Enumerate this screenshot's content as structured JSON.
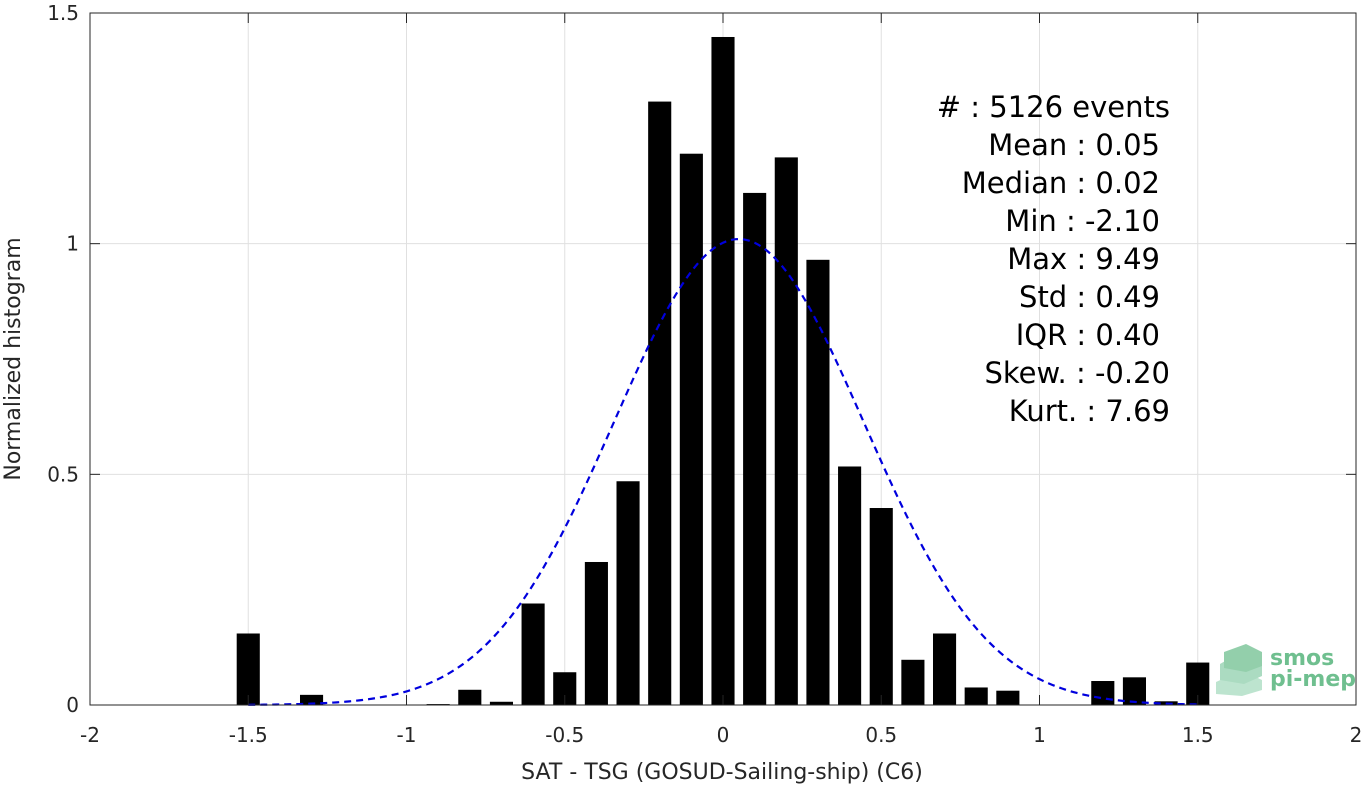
{
  "chart_data": {
    "type": "bar",
    "xlabel": "SAT - TSG (GOSUD-Sailing-ship) (C6)",
    "ylabel": "Normalized histogram",
    "xlim": [
      -2,
      2
    ],
    "ylim": [
      0,
      1.5
    ],
    "xticks": [
      -2,
      -1.5,
      -1,
      -0.5,
      0,
      0.5,
      1,
      1.5,
      2
    ],
    "xtick_labels": [
      "-2",
      "-1.5",
      "-1",
      "-0.5",
      "0",
      "0.5",
      "1",
      "1.5",
      "2"
    ],
    "yticks": [
      0,
      0.5,
      1,
      1.5
    ],
    "ytick_labels": [
      "0",
      "0.5",
      "1",
      "1.5"
    ],
    "grid": true,
    "bar_color": "#000000",
    "bin_width": 0.1,
    "bins": [
      {
        "x": -1.5,
        "value": 0.155
      },
      {
        "x": -1.3,
        "value": 0.022
      },
      {
        "x": -0.9,
        "value": 0.002
      },
      {
        "x": -0.8,
        "value": 0.033
      },
      {
        "x": -0.7,
        "value": 0.007
      },
      {
        "x": -0.6,
        "value": 0.22
      },
      {
        "x": -0.5,
        "value": 0.071
      },
      {
        "x": -0.4,
        "value": 0.31
      },
      {
        "x": -0.3,
        "value": 0.485
      },
      {
        "x": -0.2,
        "value": 1.308
      },
      {
        "x": -0.1,
        "value": 1.195
      },
      {
        "x": 0.0,
        "value": 1.448
      },
      {
        "x": 0.1,
        "value": 1.11
      },
      {
        "x": 0.2,
        "value": 1.187
      },
      {
        "x": 0.3,
        "value": 0.965
      },
      {
        "x": 0.4,
        "value": 0.517
      },
      {
        "x": 0.5,
        "value": 0.427
      },
      {
        "x": 0.6,
        "value": 0.098
      },
      {
        "x": 0.7,
        "value": 0.155
      },
      {
        "x": 0.8,
        "value": 0.038
      },
      {
        "x": 0.9,
        "value": 0.031
      },
      {
        "x": 1.2,
        "value": 0.052
      },
      {
        "x": 1.3,
        "value": 0.06
      },
      {
        "x": 1.4,
        "value": 0.008
      },
      {
        "x": 1.5,
        "value": 0.092
      }
    ],
    "fit_curve": {
      "type": "normal",
      "mean": 0.05,
      "std": 0.395,
      "peak": 1.01,
      "color": "#0000dd",
      "style": "dashed",
      "x_range": [
        -1.5,
        1.5
      ]
    },
    "stats": [
      {
        "label": "#  ",
        "value": ": 5126 events"
      },
      {
        "label": "Mean ",
        "value": ": 0.05"
      },
      {
        "label": "Median ",
        "value": ": 0.02"
      },
      {
        "label": "Min ",
        "value": ": -2.10"
      },
      {
        "label": "Max ",
        "value": ": 9.49"
      },
      {
        "label": "Std ",
        "value": ": 0.49"
      },
      {
        "label": "IQR ",
        "value": ": 0.40"
      },
      {
        "label": "Skew. ",
        "value": ": -0.20"
      },
      {
        "label": "Kurt. ",
        "value": ": 7.69"
      }
    ],
    "stat_lines": [
      "#  : 5126 events",
      "Mean : 0.05",
      "Median : 0.02",
      "Min : -2.10",
      "Max : 9.49",
      "Std : 0.49",
      "IQR : 0.40",
      "Skew. : -0.20",
      "Kurt. : 7.69"
    ]
  },
  "logo": {
    "line1": "smos",
    "line2": "pi-mep",
    "color": "#6fbf8f"
  }
}
